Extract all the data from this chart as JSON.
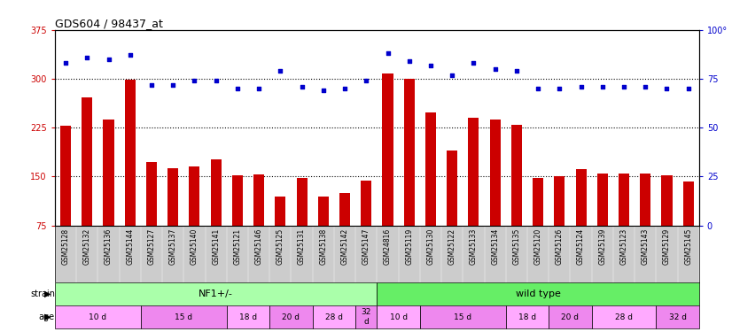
{
  "title": "GDS604 / 98437_at",
  "samples": [
    "GSM25128",
    "GSM25132",
    "GSM25136",
    "GSM25144",
    "GSM25127",
    "GSM25137",
    "GSM25140",
    "GSM25141",
    "GSM25121",
    "GSM25146",
    "GSM25125",
    "GSM25131",
    "GSM25138",
    "GSM25142",
    "GSM25147",
    "GSM24816",
    "GSM25119",
    "GSM25130",
    "GSM25122",
    "GSM25133",
    "GSM25134",
    "GSM25135",
    "GSM25120",
    "GSM25126",
    "GSM25124",
    "GSM25139",
    "GSM25123",
    "GSM25143",
    "GSM25129",
    "GSM25145"
  ],
  "counts": [
    228,
    272,
    238,
    298,
    172,
    163,
    165,
    176,
    152,
    153,
    120,
    148,
    120,
    125,
    144,
    308,
    300,
    248,
    190,
    240,
    238,
    230,
    148,
    150,
    161,
    155,
    155,
    155,
    152,
    142
  ],
  "percentile_ranks": [
    83,
    86,
    85,
    87,
    72,
    72,
    74,
    74,
    70,
    70,
    79,
    71,
    69,
    70,
    74,
    88,
    84,
    82,
    77,
    83,
    80,
    79,
    70,
    70,
    71,
    71,
    71,
    71,
    70,
    70
  ],
  "bar_color": "#cc0000",
  "dot_color": "#0000cc",
  "ylim_left": [
    75,
    375
  ],
  "ylim_right": [
    0,
    100
  ],
  "yticks_left": [
    75,
    150,
    225,
    300,
    375
  ],
  "yticks_right": [
    0,
    25,
    50,
    75,
    100
  ],
  "hlines": [
    150,
    225,
    300
  ],
  "strain_nf1_label": "NF1+/-",
  "strain_wt_label": "wild type",
  "strain_nf1_color": "#aaffaa",
  "strain_wt_color": "#66ee66",
  "age_groups": [
    {
      "label": "10 d",
      "start": 0,
      "end": 4,
      "color": "#ffaaff"
    },
    {
      "label": "15 d",
      "start": 4,
      "end": 8,
      "color": "#ee88ee"
    },
    {
      "label": "18 d",
      "start": 8,
      "end": 10,
      "color": "#ffaaff"
    },
    {
      "label": "20 d",
      "start": 10,
      "end": 12,
      "color": "#ee88ee"
    },
    {
      "label": "28 d",
      "start": 12,
      "end": 14,
      "color": "#ffaaff"
    },
    {
      "label": "32\nd",
      "start": 14,
      "end": 15,
      "color": "#ee88ee"
    },
    {
      "label": "10 d",
      "start": 15,
      "end": 17,
      "color": "#ffaaff"
    },
    {
      "label": "15 d",
      "start": 17,
      "end": 21,
      "color": "#ee88ee"
    },
    {
      "label": "18 d",
      "start": 21,
      "end": 23,
      "color": "#ffaaff"
    },
    {
      "label": "20 d",
      "start": 23,
      "end": 25,
      "color": "#ee88ee"
    },
    {
      "label": "28 d",
      "start": 25,
      "end": 28,
      "color": "#ffaaff"
    },
    {
      "label": "32 d",
      "start": 28,
      "end": 30,
      "color": "#ee88ee"
    }
  ],
  "label_area_color": "#cccccc",
  "plot_bg": "#ffffff",
  "bar_bottom": 75
}
